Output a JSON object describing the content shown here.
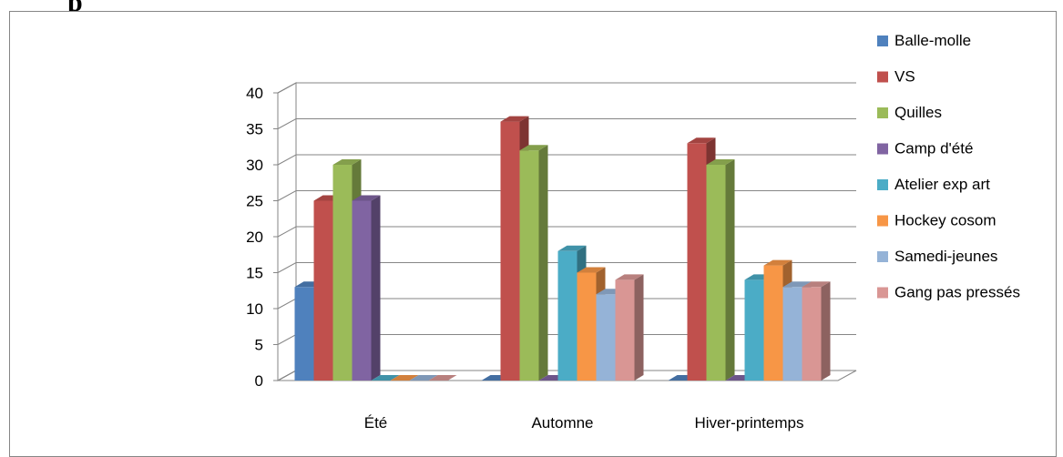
{
  "page_heading": "p",
  "chart_data": {
    "type": "bar",
    "title": "",
    "xlabel": "",
    "ylabel": "",
    "categories": [
      "Été",
      "Automne",
      "Hiver-printemps"
    ],
    "ylim": [
      0,
      40
    ],
    "yticks": [
      0,
      5,
      10,
      15,
      20,
      25,
      30,
      35,
      40
    ],
    "grid": true,
    "legend_position": "right",
    "three_d": true,
    "series": [
      {
        "name": "Balle-molle",
        "color": "#4F81BD",
        "values": [
          13,
          0,
          0
        ]
      },
      {
        "name": "VS",
        "color": "#C0504D",
        "values": [
          25,
          36,
          33
        ]
      },
      {
        "name": "Quilles",
        "color": "#9BBB59",
        "values": [
          30,
          32,
          30
        ]
      },
      {
        "name": "Camp d'été",
        "color": "#8064A2",
        "values": [
          25,
          0,
          0
        ]
      },
      {
        "name": "Atelier exp art",
        "color": "#4BACC6",
        "values": [
          0,
          18,
          14
        ]
      },
      {
        "name": "Hockey cosom",
        "color": "#F79646",
        "values": [
          0,
          15,
          16
        ]
      },
      {
        "name": "Samedi-jeunes",
        "color": "#95B3D7",
        "values": [
          0,
          12,
          13
        ]
      },
      {
        "name": "Gang pas pressés",
        "color": "#D99694",
        "values": [
          0,
          14,
          13
        ]
      }
    ]
  }
}
